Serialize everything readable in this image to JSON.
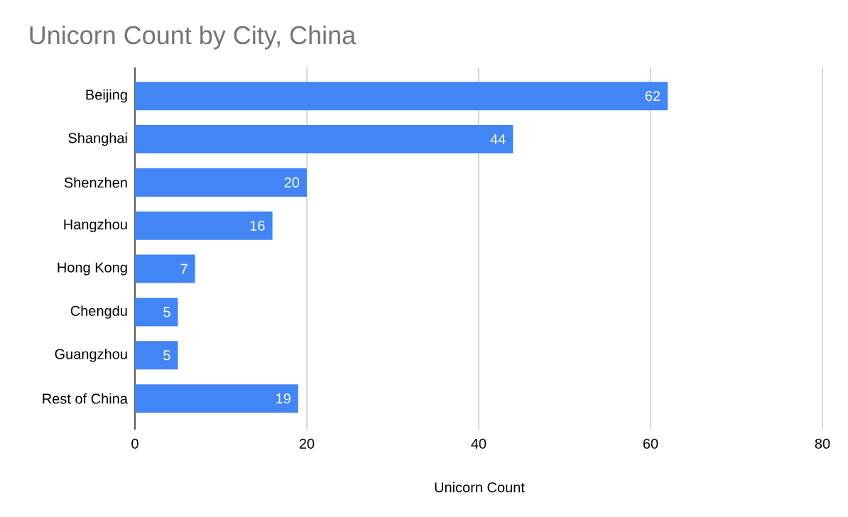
{
  "chart_data": {
    "type": "bar",
    "orientation": "horizontal",
    "title": "Unicorn Count by City, China",
    "xlabel": "Unicorn Count",
    "categories": [
      "Beijing",
      "Shanghai",
      "Shenzhen",
      "Hangzhou",
      "Hong Kong",
      "Chengdu",
      "Guangzhou",
      "Rest of China"
    ],
    "values": [
      62,
      44,
      20,
      16,
      7,
      5,
      5,
      19
    ],
    "color": "#4285f4",
    "xlim": [
      0,
      80
    ],
    "xticks": [
      0,
      20,
      40,
      60,
      80
    ],
    "grid": "x",
    "data_labels": true
  }
}
